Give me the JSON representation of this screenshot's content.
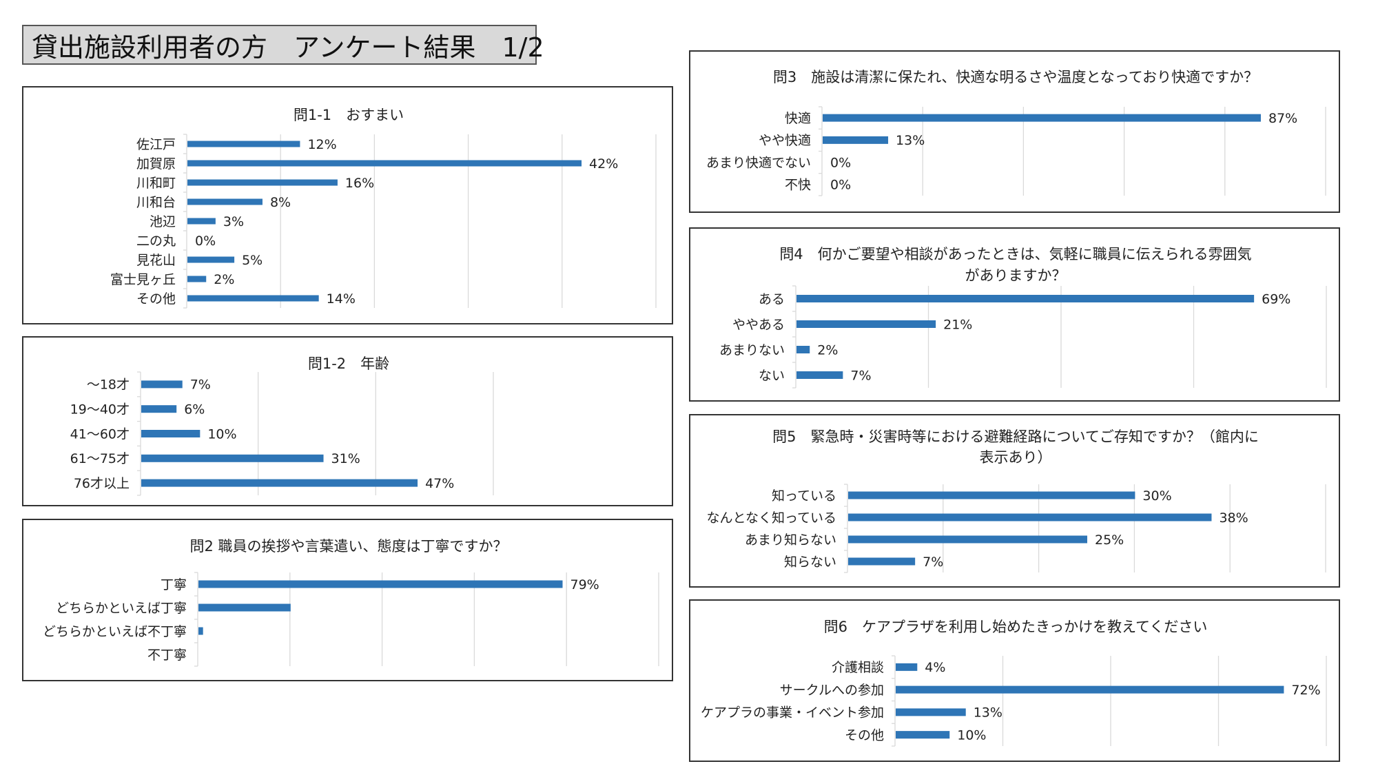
{
  "page": {
    "title": "貸出施設利用者の方　アンケート結果　1/2"
  },
  "colors": {
    "bar": "#2E75B6",
    "grid": "#d9d9d9",
    "axis": "#d9d9d9",
    "text": "#222222",
    "title_box_bg": "#d9d9d9"
  },
  "chart_data": [
    {
      "id": "q1-1",
      "type": "bar",
      "orientation": "horizontal",
      "title_lines": [
        "問1-1　おすまい"
      ],
      "categories": [
        "佐江戸",
        "加賀原",
        "川和町",
        "川和台",
        "池辺",
        "二の丸",
        "見花山",
        "富士見ヶ丘",
        "その他"
      ],
      "values": [
        12,
        42,
        16,
        8,
        3,
        0,
        5,
        2,
        14
      ],
      "data_labels": [
        "12%",
        "42%",
        "16%",
        "8%",
        "3%",
        "0%",
        "5%",
        "2%",
        "14%"
      ],
      "unit": "%",
      "xlim": [
        0,
        50
      ],
      "grid_step": 10,
      "grid": true,
      "legend": "none"
    },
    {
      "id": "q1-2",
      "type": "bar",
      "orientation": "horizontal",
      "title_lines": [
        "問1-2　年齢"
      ],
      "categories": [
        "～18才",
        "19～40才",
        "41～60才",
        "61～75才",
        "76才以上"
      ],
      "values": [
        7,
        6,
        10,
        31,
        47
      ],
      "data_labels": [
        "7%",
        "6%",
        "10%",
        "31%",
        "47%"
      ],
      "unit": "%",
      "xlim": [
        0,
        60
      ],
      "grid_step": 20,
      "grid": true,
      "legend": "none"
    },
    {
      "id": "q2",
      "type": "bar",
      "orientation": "horizontal",
      "title_lines": [
        "問2 職員の挨拶や言葉遣い、態度は丁寧ですか？"
      ],
      "categories": [
        "丁寧",
        "どちらかといえば丁寧",
        "どちらかといえば不丁寧",
        "不丁寧"
      ],
      "values": [
        79,
        20,
        1,
        0
      ],
      "data_labels": [
        "79%",
        "",
        "",
        ""
      ],
      "unit": "%",
      "xlim": [
        0,
        100
      ],
      "grid_step": 20,
      "grid": true,
      "legend": "none"
    },
    {
      "id": "q3",
      "type": "bar",
      "orientation": "horizontal",
      "title_lines": [
        "問3　施設は清潔に保たれ、快適な明るさや温度となっており快適ですか？"
      ],
      "categories": [
        "快適",
        "やや快適",
        "あまり快適でない",
        "不快"
      ],
      "values": [
        87,
        13,
        0,
        0
      ],
      "data_labels": [
        "87%",
        "13%",
        "0%",
        "0%"
      ],
      "unit": "%",
      "xlim": [
        0,
        100
      ],
      "grid_step": 20,
      "grid": true,
      "legend": "none"
    },
    {
      "id": "q4",
      "type": "bar",
      "orientation": "horizontal",
      "title_lines": [
        "問4　何かご要望や相談があったときは、気軽に職員に伝えられる雰囲気",
        "がありますか？"
      ],
      "categories": [
        "ある",
        "ややある",
        "あまりない",
        "ない"
      ],
      "values": [
        69,
        21,
        2,
        7
      ],
      "data_labels": [
        "69%",
        "21%",
        "2%",
        "7%"
      ],
      "unit": "%",
      "xlim": [
        0,
        80
      ],
      "grid_step": 20,
      "grid": true,
      "legend": "none"
    },
    {
      "id": "q5",
      "type": "bar",
      "orientation": "horizontal",
      "title_lines": [
        "問5　緊急時・災害時等における避難経路についてご存知ですか？（館内に",
        "表示あり）"
      ],
      "categories": [
        "知っている",
        "なんとなく知っている",
        "あまり知らない",
        "知らない"
      ],
      "values": [
        30,
        38,
        25,
        7
      ],
      "data_labels": [
        "30%",
        "38%",
        "25%",
        "7%"
      ],
      "unit": "%",
      "xlim": [
        0,
        50
      ],
      "grid_step": 10,
      "grid": true,
      "legend": "none"
    },
    {
      "id": "q6",
      "type": "bar",
      "orientation": "horizontal",
      "title_lines": [
        "問6　ケアプラザを利用し始めたきっかけを教えてください"
      ],
      "categories": [
        "介護相談",
        "サークルへの参加",
        "ケアプラの事業・イベント参加",
        "その他"
      ],
      "values": [
        4,
        72,
        13,
        10
      ],
      "data_labels": [
        "4%",
        "72%",
        "13%",
        "10%"
      ],
      "unit": "%",
      "xlim": [
        0,
        80
      ],
      "grid_step": 20,
      "grid": true,
      "legend": "none"
    }
  ]
}
